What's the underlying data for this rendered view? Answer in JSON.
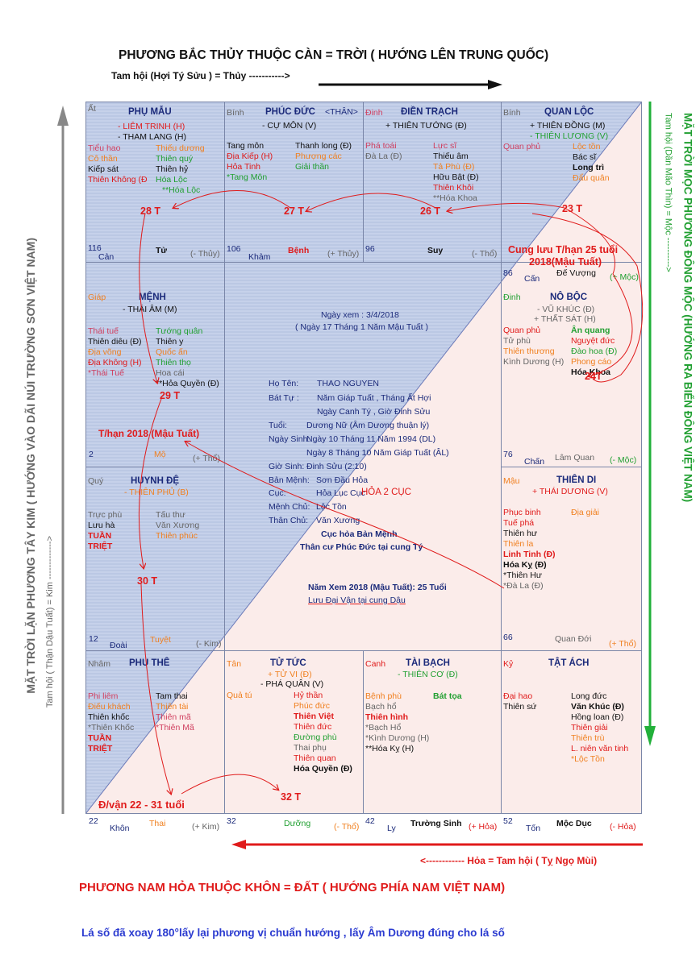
{
  "header": {
    "north_title": "PHƯƠNG BẮC THỦY THUỘC CÀN = TRỜI ( HƯỚNG LÊN TRUNG QUỐC)",
    "north_sub": "Tam hội (Hợi Tý Sửu )  = Thủy ----------->"
  },
  "sides": {
    "east_title": "MẶT TRỜI MỌC PHƯƠNG ĐÔNG MỘC (HƯỚNG RA BIỂN ĐÔNG VIỆT NAM)",
    "east_sub": "Tam hội (Dần Mão Thìn) = Mộc ---------->",
    "west_title": "MẶT TRỜI LẶN PHƯƠNG TÂY KIM ( HƯỚNG VÀO DÃI NÚI TRƯỜNG SƠN VIỆT NAM)",
    "west_sub": "Tam hội ( Thận Dậu Tuất) = Kim ------------->"
  },
  "footer": {
    "south_sub": "<------------ Hỏa =   Tam hội ( Tỵ Ngọ Mùi)",
    "south_title": "PHƯƠNG NAM HỎA  THUỘC KHÔN = ĐẤT ( HƯỚNG PHÍA NAM VIỆT NAM)",
    "note": "Lá số đã xoay 180°lấy lại phương vị chuẩn hướng , lấy Âm Dương đúng cho lá số"
  },
  "palaces": {
    "phu_mau": {
      "can": "Ất",
      "name": "PHỤ MẪU",
      "s1": "- LIÊM TRINH (H)",
      "s2": "- THAM LANG (H)",
      "age": "28 T",
      "num": "116",
      "cung": "Cản",
      "stage": "Tử",
      "elem": "(- Thủy)"
    },
    "phuc_duc": {
      "can": "Bính",
      "name": "PHÚC ĐỨC",
      "tag": "<THÂN>",
      "s1": "- CỰ MÔN (V)",
      "age": "27 T",
      "num": "106",
      "cung": "Khảm",
      "stage": "Bệnh",
      "elem": "(+ Thủy)"
    },
    "dien_trach": {
      "can": "Đinh",
      "name": "ĐIỀN TRẠCH",
      "s1": "+ THIÊN TƯỚNG (Đ)",
      "age": "26 T",
      "num": "96",
      "stage": "Suy",
      "elem": "(- Thổ)"
    },
    "quan_loc": {
      "can": "Bính",
      "name": "QUAN LỘC",
      "s1": "+ THIÊN ĐỒNG (M)",
      "s2": "- THIÊN LƯƠNG (V)",
      "age": "23 T",
      "num": "86",
      "cung": "Cấn",
      "stage": "Đế Vượng",
      "elem": "(+ Mộc)"
    },
    "menh": {
      "can": "Giáp",
      "name": "MỆNH",
      "s1": "- THÁI ÂM (M)",
      "age": "29 T",
      "num": "2",
      "stage": "Mộ",
      "elem": "(+ Thổ)"
    },
    "no_boc": {
      "can": "Đinh",
      "name": "NÔ BỘC",
      "s1": "- VŨ KHÚC (Đ)",
      "s2": "+ THẤT SÁT (H)",
      "age": "24T",
      "num": "76",
      "cung": "Chấn",
      "stage": "Lâm Quan",
      "elem": "(- Mộc)"
    },
    "huynh_de": {
      "can": "Quý",
      "name": "HUYNH ĐỆ",
      "s1": "- THIÊN PHỦ (B)",
      "age": "30 T",
      "num": "12",
      "cung": "Đoài",
      "stage": "Tuyệt",
      "elem": "(- Kim)"
    },
    "thien_di": {
      "can": "Mậu",
      "name": "THIÊN DI",
      "s1": "+ THÁI DƯƠNG (V)",
      "num": "66",
      "stage": "Quan Đới",
      "elem": "(+ Thổ)"
    },
    "phu_the": {
      "can": "Nhâm",
      "name": "PHU THÊ",
      "num": "22",
      "cung": "Khôn",
      "stage": "Thai",
      "elem": "(+ Kim)"
    },
    "tu_tuc": {
      "can": "Tân",
      "name": "TỬ TỨC",
      "s1": "+ TỬ VI (Đ)",
      "s2": "- PHÁ QUÂN (V)",
      "age": "32 T",
      "num": "32",
      "stage": "Dưỡng",
      "elem": "(- Thổ)"
    },
    "tai_bach": {
      "can": "Canh",
      "name": "TÀI BẠCH",
      "s1": "- THIÊN CƠ (Đ)",
      "num": "42",
      "cung": "Ly",
      "stage": "Trường Sinh",
      "elem": "(+ Hỏa)"
    },
    "tat_ach": {
      "can": "Kỷ",
      "name": "TẬT ÁCH",
      "num": "52",
      "cung": "Tốn",
      "stage": "Mộc Dục",
      "elem": "(- Hỏa)"
    }
  },
  "center": {
    "ngay_xem": "Ngày xem : 3/4/2018",
    "ngay_xem2": "( Ngày 17 Tháng 1 Năm Mậu Tuất )",
    "ho_ten_l": "Họ Tên:",
    "ho_ten": "THAO NGUYEN",
    "bat_tu_l": "Bát Tự :",
    "bat_tu1": "Năm Giáp Tuất , Tháng Ất Hợi",
    "bat_tu2": "Ngày Canh Tý , Giờ Đinh Sửu",
    "tuoi_l": "Tuổi:",
    "tuoi": "Dương Nữ (Âm Dương thuận lý)",
    "ngay_sinh_l": "Ngày Sinh:",
    "ngay_sinh1": "Ngày 10 Tháng 11 Năm 1994 (DL)",
    "ngay_sinh2": "Ngày 8 Tháng 10 Năm Giáp Tuất (ÂL)",
    "gio_sinh_l": "Giờ Sinh:",
    "gio_sinh": "Đinh Sửu (2:10)",
    "ban_menh_l": "Bản Mệnh:",
    "ban_menh": "Sơn Đầu Hỏa",
    "cuc_l": "Cục:",
    "cuc": "Hỏa Lục Cục",
    "cuc_note": "HỎA 2 CỤC",
    "menh_chu_l": "Mệnh Chủ:",
    "menh_chu": "Lộc Tồn",
    "than_chu_l": "Thân Chủ:",
    "than_chu": "Văn Xương",
    "note1": "Cục hỏa Bản Mệnh",
    "note2": "Thân cư Phúc Đức tại cung Tý",
    "nam_xem": "Năm Xem 2018 (Mậu Tuất): 25 Tuổi",
    "luu_dai_van": "Lưu Đại Vận tại cung Dậu"
  },
  "annotations": {
    "cung_luu1": "Cung lưu T/hạn 25 tuổi",
    "cung_luu2": "2018(Mậu Tuất)",
    "thhan": "T/hạn 2018 (Mậu Tuất)",
    "dvan": "Đ/vận 22 - 31 tuổi"
  },
  "stars": {
    "phu_mau_l": [
      "Tiểu hao",
      "Cô thần",
      "Kiếp sát",
      "Thiên  Không (Đ"
    ],
    "phu_mau_r": [
      "Thiếu dương",
      "Thiên quý",
      "Thiên hỷ",
      "Hóa Lộc",
      "**Hóa Lộc"
    ],
    "phuc_duc_l": [
      "Tang môn",
      "Địa Kiếp (H)",
      "Hỏa Tinh",
      "*Tang Môn"
    ],
    "phuc_duc_r": [
      "Thanh long (Đ)",
      "Phượng các",
      "Giải thần"
    ],
    "dien_trach_l": [
      "Phá toái",
      "Đà La (Đ)"
    ],
    "dien_trach_r": [
      "Lực sĩ",
      "Thiếu âm",
      "Tả Phù (Đ)",
      "Hữu Bật (Đ)",
      "Thiên Khôi",
      "**Hóa Khoa"
    ],
    "quan_loc_l": [
      "Quan phủ"
    ],
    "quan_loc_r": [
      "Lộc tồn",
      "Bác sĩ",
      "Long trì",
      "Đẩu quân"
    ],
    "menh_l": [
      "Thái tuế",
      "Thiên diêu (Đ)",
      "Địa võng",
      "Địa Không (H)",
      "*Thái Tuế"
    ],
    "menh_r": [
      "Tướng quân",
      "Thiên y",
      "Quốc ấn",
      "Thiên thọ",
      "Hoa cái",
      "**Hỏa Quyền (Đ)"
    ],
    "no_boc_l": [
      "Quan phủ",
      "Tử phù",
      "Thiên thương",
      "Kình Dương (H)"
    ],
    "no_boc_r": [
      "Ân quang",
      "Nguyệt đức",
      "Đào hoa (Đ)",
      "Phong cáo",
      "Hóa Khoa"
    ],
    "huynh_de_l": [
      "Trực phù",
      "Lưu hà",
      "TUẦN",
      "TRIỆT"
    ],
    "huynh_de_r": [
      "Tấu thư",
      "Văn Xương",
      "Thiên phúc"
    ],
    "thien_di_l": [
      "Phục binh",
      "Tuế phá",
      "Thiên hư",
      "Thiên la",
      "Linh Tinh (Đ)",
      "Hóa Kỵ (Đ)",
      "*Thiên Hư",
      "*Đà La (Đ)"
    ],
    "thien_di_r": [
      "Địa giải"
    ],
    "phu_the_l": [
      "Phi liêm",
      "Điếu khách",
      "Thiên khốc",
      "*Thiên Khốc",
      "TUẦN",
      "TRIỆT"
    ],
    "phu_the_r": [
      "Tam thai",
      "Thiên tài",
      "Thiên mã",
      "*Thiên Mã"
    ],
    "tu_tuc_l": [
      "Quả tú"
    ],
    "tu_tuc_r": [
      "Hỷ thần",
      "Phúc đức",
      "Thiên Việt",
      "Thiên đức",
      "Đường phù",
      "Thai phụ",
      "Thiên quan",
      "Hóa Quyền (Đ)"
    ],
    "tai_bach_l": [
      "Bệnh phù",
      "Bạch hổ",
      "Thiên hình",
      "*Bạch Hổ",
      "*Kình Dương (H)",
      "**Hóa Kỵ (H)"
    ],
    "tai_bach_r": [
      "Bát tọa"
    ],
    "tat_ach_l": [
      "Đại hao",
      "Thiên sứ"
    ],
    "tat_ach_r": [
      "Long đức",
      "Văn Khúc (Đ)",
      "Hồng loan (Đ)",
      "Thiên giải",
      "Thiên trù",
      "L. niên văn tinh",
      "*Lộc Tồn"
    ]
  },
  "colors": {
    "navy": "#1b2a7a",
    "red": "#e01b1b",
    "green": "#22a032",
    "gray": "#666666",
    "chart_blue": "#c9d3ea",
    "chart_pink": "#fbecea"
  }
}
